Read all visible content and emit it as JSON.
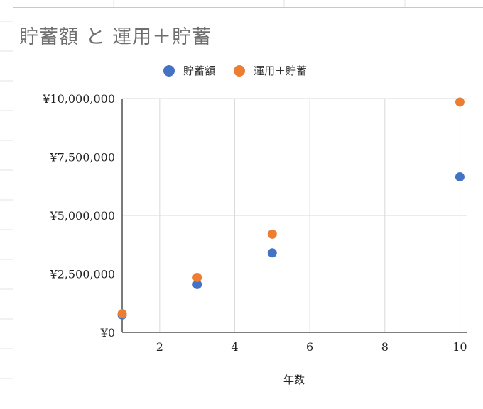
{
  "chart_data": {
    "type": "scatter",
    "title": "貯蓄額 と 運用＋貯蓄",
    "xlabel": "年数",
    "ylabel": "",
    "xlim": [
      1,
      10.2
    ],
    "ylim": [
      0,
      10000000
    ],
    "x_ticks": [
      2,
      4,
      6,
      8,
      10
    ],
    "y_ticks": [
      0,
      2500000,
      5000000,
      7500000,
      10000000
    ],
    "y_tick_labels": [
      "¥0",
      "¥2,500,000",
      "¥5,000,000",
      "¥7,500,000",
      "¥10,000,000"
    ],
    "grid": true,
    "legend_position": "top",
    "series": [
      {
        "name": "貯蓄額",
        "color": "#4472c4",
        "points": [
          [
            1,
            750000
          ],
          [
            3,
            2050000
          ],
          [
            5,
            3400000
          ],
          [
            10,
            6650000
          ]
        ]
      },
      {
        "name": "運用＋貯蓄",
        "color": "#ed7d31",
        "points": [
          [
            1,
            800000
          ],
          [
            3,
            2350000
          ],
          [
            5,
            4200000
          ],
          [
            10,
            9850000
          ]
        ]
      }
    ]
  }
}
